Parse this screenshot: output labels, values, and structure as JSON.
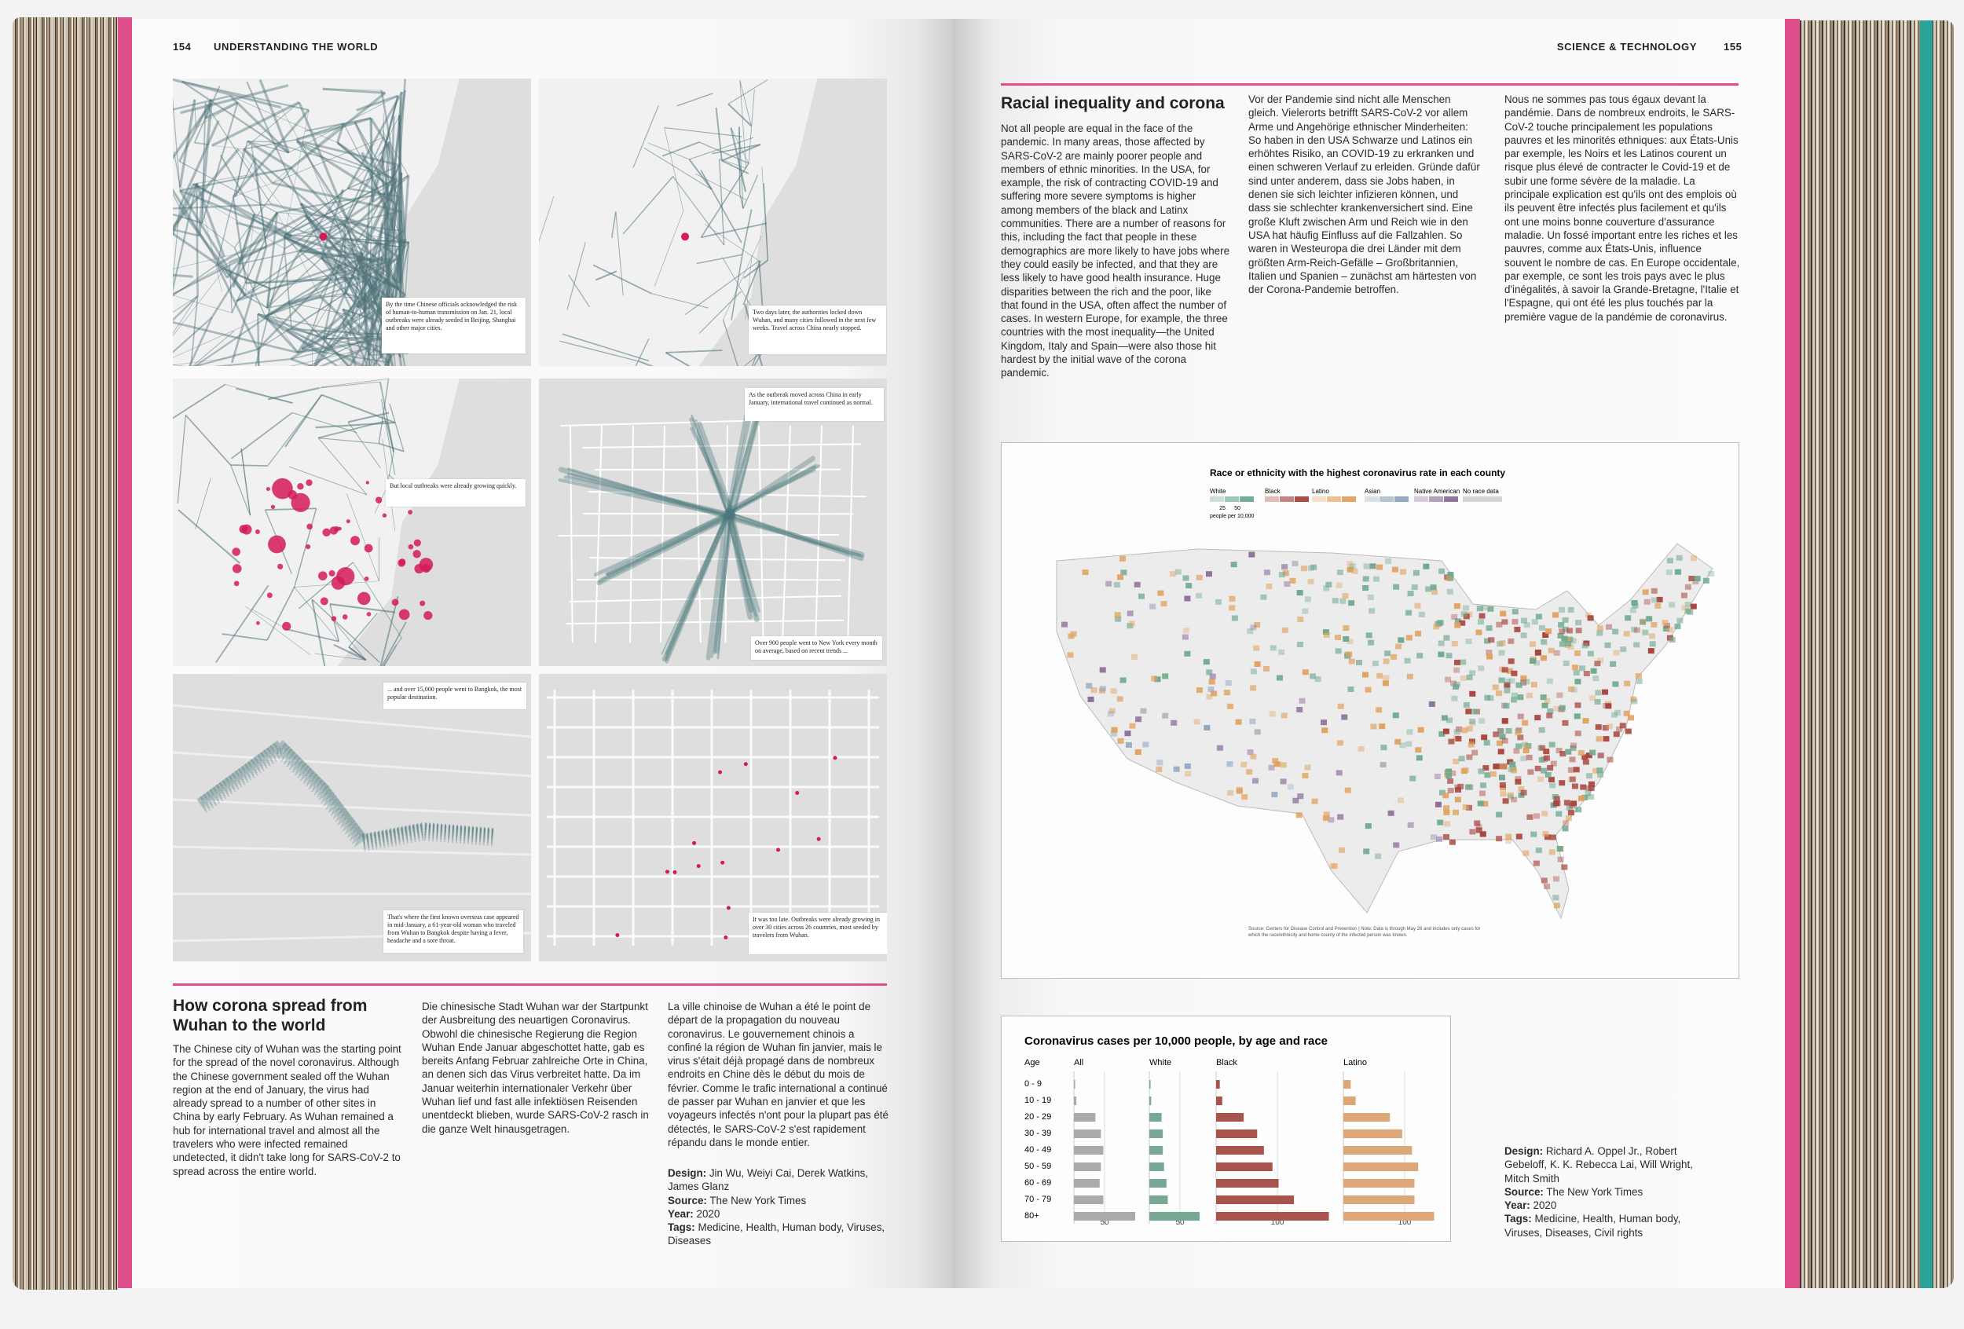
{
  "left_page": {
    "page_number": "154",
    "running_head": "UNDERSTANDING THE WORLD",
    "map_panels": [
      {
        "captions": [
          "By the time Chinese officials acknowledged the risk of human-to-human transmission on Jan. 21, local outbreaks were already seeded in Beijing, Shanghai and other major cities."
        ]
      },
      {
        "captions": [
          "Two days later, the authorities locked down Wuhan, and many cities followed in the next few weeks. Travel across China nearly stopped."
        ]
      },
      {
        "captions": [
          "But local outbreaks were already growing quickly."
        ]
      },
      {
        "captions": [
          "As the outbreak moved across China in early January, international travel continued as normal.",
          "Over 900 people went to New York every month on average, based on recent trends ..."
        ]
      },
      {
        "captions": [
          "... and over 15,000 people went to Bangkok, the most popular destination.",
          "That's where the first known overseas case appeared in mid-January, a 61-year-old woman who traveled from Wuhan to Bangkok despite having a fever, headache and a sore throat."
        ]
      },
      {
        "captions": [
          "It was too late. Outbreaks were already growing in over 30 cities across 26 countries, most seeded by travelers from Wuhan."
        ]
      }
    ],
    "article": {
      "title": "How corona spread from Wuhan to the world",
      "columns": [
        "The Chinese city of Wuhan was the starting point for the spread of the novel coronavirus. Although the Chinese government sealed off the Wuhan region at the end of January, the virus had already spread to a number of other sites in China by early February. As Wuhan remained a hub for international travel and almost all the travelers who were infected remained undetected, it didn't take long for SARS-CoV-2 to spread across the entire world.",
        "Die chinesische Stadt Wuhan war der Startpunkt der Ausbreitung des neuartigen Coronavirus. Obwohl die chinesische Regierung die Region Wuhan Ende Januar abgeschottet hatte, gab es bereits Anfang Februar zahlreiche Orte in China, an denen sich das Virus verbreitet hatte. Da im Januar weiterhin internationaler Verkehr über Wuhan lief und fast alle infektiösen Reisenden unentdeckt blieben, wurde SARS-CoV-2 rasch in die ganze Welt hinausgetragen.",
        "La ville chinoise de Wuhan a été le point de départ de la propagation du nouveau coronavirus. Le gouvernement chinois a confiné la région de Wuhan fin janvier, mais le virus s'était déjà propagé dans de nombreux endroits en Chine dès le début du mois de février. Comme le trafic international a continué de passer par Wuhan en janvier et que les voyageurs infectés n'ont pour la plupart pas été détectés, le SARS-CoV-2 s'est rapidement répandu dans le monde entier."
      ],
      "credits": [
        {
          "label": "Design:",
          "text": "Jin Wu, Weiyi Cai, Derek Watkins, James Glanz"
        },
        {
          "label": "Source:",
          "text": "The New York Times"
        },
        {
          "label": "Year:",
          "text": "2020"
        },
        {
          "label": "Tags:",
          "text": "Medicine, Health, Human body, Viruses, Diseases"
        }
      ]
    }
  },
  "right_page": {
    "page_number": "155",
    "running_head": "SCIENCE & TECHNOLOGY",
    "article": {
      "title": "Racial inequality and corona",
      "columns": [
        "Not all people are equal in the face of the pandemic. In many areas, those affected by SARS-CoV-2 are mainly poorer people and members of ethnic minorities. In the USA, for example, the risk of contracting COVID-19 and suffering more severe symptoms is higher among members of the black and Latinx communities. There are a number of reasons for this, including the fact that people in these demographics are more likely to have jobs where they could easily be infected, and that they are less likely to have good health insurance. Huge disparities between the rich and the poor, like that found in the USA, often affect the number of cases. In western Europe, for example, the three countries with the most inequality—the United Kingdom, Italy and Spain—were also those hit hardest by the initial wave of the corona pandemic.",
        "Vor der Pandemie sind nicht alle Menschen gleich. Vielerorts betrifft SARS-CoV-2 vor allem Arme und Angehörige ethnischer Minderheiten: So haben in den USA Schwarze und Latinos ein erhöhtes Risiko, an COVID-19 zu erkranken und einen schweren Verlauf zu erleiden. Gründe dafür sind unter anderem, dass sie Jobs haben, in denen sie sich leichter infizieren können, und dass sie schlechter krankenversichert sind. Eine große Kluft zwischen Arm und Reich wie in den USA hat häufig Einfluss auf die Fallzahlen. So waren in Westeuropa die drei Länder mit dem größten Arm-Reich-Gefälle – Großbritannien, Italien und Spanien – zunächst am härtesten von der Corona-Pandemie betroffen.",
        "Nous ne sommes pas tous égaux devant la pandémie. Dans de nombreux endroits, le SARS-CoV-2 touche principalement les populations pauvres et les minorités ethniques: aux États-Unis par exemple, les Noirs et les Latinos courent un risque plus élevé de contracter le Covid-19 et de subir une forme sévère de la maladie. La principale explication est qu'ils ont des emplois où ils peuvent être infectés plus facilement et qu'ils ont une moins bonne couverture d'assurance maladie. Un fossé important entre les riches et les pauvres, comme aux États-Unis, influence souvent le nombre de cas. En Europe occidentale, par exemple, ce sont les trois pays avec le plus d'inégalités, à savoir la Grande-Bretagne, l'Italie et l'Espagne, qui ont été les plus touchés par la première vague de la pandémie de coronavirus."
      ],
      "credits": [
        {
          "label": "Design:",
          "text": "Richard A. Oppel Jr., Robert Gebeloff, K. K. Rebecca Lai, Will Wright, Mitch Smith"
        },
        {
          "label": "Source:",
          "text": "The New York Times"
        },
        {
          "label": "Year:",
          "text": "2020"
        },
        {
          "label": "Tags:",
          "text": "Medicine, Health, Human body, Viruses, Diseases, Civil rights"
        }
      ]
    },
    "us_map": {
      "title": "Race or ethnicity with the highest coronavirus rate in each county",
      "legend": [
        {
          "name": "White",
          "color": "#6fa98f"
        },
        {
          "name": "Black",
          "color": "#a8453e"
        },
        {
          "name": "Latino",
          "color": "#e0a25e"
        },
        {
          "name": "Asian",
          "color": "#8fa6bd"
        },
        {
          "name": "Native American",
          "color": "#8c6e99"
        },
        {
          "name": "No race data",
          "color": "#d4d4d4"
        }
      ],
      "scale_labels": [
        "25",
        "50"
      ],
      "scale_unit": "people per 10,000",
      "source": "Source: Centers for Disease Control and Prevention | Note: Data is through May 28 and includes only cases for which the race/ethnicity and home county of the infected person was known."
    },
    "bar_chart": {
      "type": "bar",
      "title": "Coronavirus cases per 10,000 people, by age and race",
      "category_header": "Age",
      "categories": [
        "0 - 9",
        "10 - 19",
        "20 - 29",
        "30 - 39",
        "40 - 49",
        "50 - 59",
        "60 - 69",
        "70 - 79",
        "80+"
      ],
      "series": [
        {
          "name": "All",
          "color": "#aaaaaa",
          "values": [
            2,
            4,
            35,
            44,
            48,
            44,
            42,
            48,
            100
          ],
          "xticks": [
            50
          ]
        },
        {
          "name": "White",
          "color": "#76a894",
          "values": [
            2,
            3,
            20,
            22,
            22,
            24,
            28,
            30,
            82
          ],
          "xticks": [
            50
          ]
        },
        {
          "name": "Black",
          "color": "#a8534b",
          "values": [
            6,
            10,
            45,
            67,
            78,
            92,
            102,
            127,
            184
          ],
          "xticks": [
            100
          ]
        },
        {
          "name": "Latino",
          "color": "#dca878",
          "values": [
            12,
            20,
            76,
            96,
            112,
            122,
            116,
            116,
            148
          ],
          "xticks": [
            100
          ]
        }
      ]
    }
  }
}
